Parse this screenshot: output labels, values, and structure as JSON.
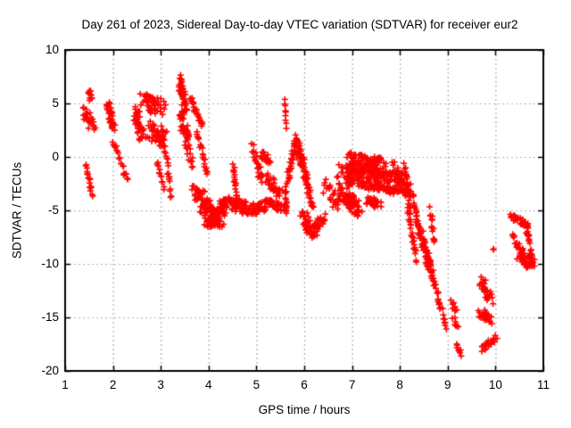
{
  "figure": {
    "background": "#ffffff",
    "text_color": "#000000"
  },
  "chart_data": {
    "type": "scatter",
    "title": "Day 261 of 2023, Sidereal Day-to-day VTEC variation (SDTVAR) for receiver eur2",
    "xlabel": "GPS time / hours",
    "ylabel": "SDTVAR / TECUs",
    "xlim": [
      1,
      11
    ],
    "ylim": [
      -20,
      10
    ],
    "xticks": [
      1,
      2,
      3,
      4,
      5,
      6,
      7,
      8,
      9,
      10,
      11
    ],
    "yticks": [
      10,
      5,
      0,
      -5,
      -10,
      -15,
      -20
    ],
    "grid": true,
    "grid_style": "dotted",
    "grid_color": "#b0b0b0",
    "axis_color": "#000000",
    "legend": "none",
    "marker": {
      "shape": "plus",
      "color": "#ff0000",
      "size": 7,
      "stroke": 1.6
    },
    "seed": 42,
    "stroke_format": "[x_start, y_start, x_end, y_end, n_points, x_jitter, y_jitter] - dense scatter segments read from the plot",
    "strokes": [
      [
        1.5,
        6.2,
        1.55,
        5.3,
        10,
        0.04,
        0.25
      ],
      [
        1.4,
        4.5,
        1.58,
        2.9,
        26,
        0.07,
        0.55
      ],
      [
        1.44,
        -0.9,
        1.56,
        -3.5,
        16,
        0.02,
        0.25
      ],
      [
        1.9,
        4.9,
        2.02,
        2.7,
        30,
        0.06,
        0.5
      ],
      [
        2.0,
        1.6,
        2.3,
        -2.3,
        20,
        0.02,
        0.3
      ],
      [
        2.47,
        4.3,
        2.62,
        1.8,
        40,
        0.06,
        0.6
      ],
      [
        2.62,
        5.2,
        3.02,
        4.7,
        55,
        0.11,
        0.8
      ],
      [
        2.75,
        2.6,
        3.08,
        1.6,
        45,
        0.1,
        0.9
      ],
      [
        3.02,
        2.8,
        3.22,
        -3.6,
        26,
        0.02,
        0.35
      ],
      [
        2.92,
        -0.6,
        3.06,
        -2.8,
        12,
        0.02,
        0.3
      ],
      [
        3.4,
        7.3,
        3.5,
        4.5,
        40,
        0.05,
        0.6
      ],
      [
        3.42,
        4.0,
        3.58,
        1.2,
        40,
        0.06,
        0.8
      ],
      [
        3.62,
        5.5,
        3.88,
        2.8,
        24,
        0.02,
        0.3
      ],
      [
        3.76,
        2.4,
        3.98,
        -1.8,
        20,
        0.02,
        0.3
      ],
      [
        3.55,
        0.8,
        3.66,
        -0.8,
        10,
        0.03,
        0.4
      ],
      [
        3.74,
        -3.3,
        4.1,
        -5.8,
        80,
        0.1,
        0.9
      ],
      [
        4.1,
        -5.6,
        4.38,
        -4.4,
        60,
        0.08,
        0.8
      ],
      [
        3.95,
        -6.2,
        4.25,
        -6.3,
        25,
        0.1,
        0.3
      ],
      [
        4.52,
        -0.7,
        4.6,
        -4.6,
        22,
        0.02,
        0.3
      ],
      [
        4.42,
        -4.3,
        4.95,
        -4.9,
        55,
        0.12,
        0.6
      ],
      [
        4.92,
        0.9,
        5.12,
        -2.4,
        26,
        0.04,
        0.5
      ],
      [
        5.08,
        0.3,
        5.28,
        -0.4,
        18,
        0.05,
        0.3
      ],
      [
        5.22,
        -2.0,
        5.48,
        -3.3,
        30,
        0.06,
        0.5
      ],
      [
        4.98,
        -5.2,
        5.32,
        -4.1,
        40,
        0.08,
        0.4
      ],
      [
        5.32,
        -4.3,
        5.58,
        -4.9,
        25,
        0.06,
        0.35
      ],
      [
        5.6,
        -2.9,
        5.64,
        -5.1,
        14,
        0.02,
        0.25
      ],
      [
        5.59,
        5.4,
        5.63,
        2.8,
        9,
        0.01,
        0.15
      ],
      [
        5.64,
        -2.4,
        5.82,
        1.6,
        30,
        0.03,
        0.4
      ],
      [
        5.82,
        1.5,
        6.1,
        -2.6,
        60,
        0.03,
        0.8
      ],
      [
        5.97,
        -5.6,
        6.2,
        -7.3,
        45,
        0.07,
        0.7
      ],
      [
        6.2,
        -6.8,
        6.42,
        -5.8,
        25,
        0.06,
        0.5
      ],
      [
        6.08,
        -3.2,
        6.18,
        -4.8,
        12,
        0.02,
        0.3
      ],
      [
        6.4,
        -2.6,
        6.72,
        -4.4,
        22,
        0.08,
        0.8
      ],
      [
        6.78,
        -3.4,
        7.12,
        -5.0,
        80,
        0.09,
        0.75
      ],
      [
        6.8,
        -1.6,
        8.08,
        -2.6,
        230,
        0.12,
        1.0
      ],
      [
        6.95,
        -0.3,
        7.62,
        -0.9,
        110,
        0.1,
        0.8
      ],
      [
        7.32,
        -4.0,
        7.56,
        -4.5,
        35,
        0.07,
        0.5
      ],
      [
        7.85,
        -1.0,
        8.12,
        -3.2,
        40,
        0.05,
        0.8
      ],
      [
        8.1,
        -0.9,
        8.24,
        -4.6,
        22,
        0.02,
        0.4
      ],
      [
        8.16,
        -4.6,
        8.34,
        -9.6,
        26,
        0.02,
        0.5
      ],
      [
        8.24,
        -3.0,
        8.48,
        -8.2,
        24,
        0.03,
        0.5
      ],
      [
        8.34,
        -5.6,
        8.62,
        -10.7,
        28,
        0.03,
        0.6
      ],
      [
        8.48,
        -7.6,
        8.7,
        -11.3,
        26,
        0.04,
        0.7
      ],
      [
        8.58,
        -9.2,
        8.82,
        -13.7,
        20,
        0.02,
        0.4
      ],
      [
        8.64,
        -4.9,
        8.72,
        -8.1,
        14,
        0.02,
        0.35
      ],
      [
        8.8,
        -12.9,
        8.97,
        -16.3,
        14,
        0.02,
        0.4
      ],
      [
        9.08,
        -13.5,
        9.18,
        -14.4,
        9,
        0.03,
        0.3
      ],
      [
        9.12,
        -15.1,
        9.22,
        -15.8,
        7,
        0.03,
        0.25
      ],
      [
        9.16,
        -17.6,
        9.28,
        -18.4,
        8,
        0.03,
        0.3
      ],
      [
        9.7,
        -11.6,
        9.9,
        -13.4,
        32,
        0.05,
        0.6
      ],
      [
        9.68,
        -14.4,
        9.9,
        -15.5,
        26,
        0.05,
        0.5
      ],
      [
        9.72,
        -18.0,
        10.0,
        -16.9,
        20,
        0.04,
        0.3
      ],
      [
        9.95,
        -8.7,
        9.96,
        -8.7,
        2,
        0.01,
        0.1
      ],
      [
        10.33,
        -5.6,
        10.63,
        -6.3,
        26,
        0.04,
        0.3
      ],
      [
        10.6,
        -6.1,
        10.7,
        -7.5,
        10,
        0.02,
        0.3
      ],
      [
        10.37,
        -7.4,
        10.66,
        -10.5,
        26,
        0.02,
        0.4
      ],
      [
        10.66,
        -6.3,
        10.78,
        -10.3,
        22,
        0.03,
        0.4
      ],
      [
        10.5,
        -9.0,
        10.78,
        -9.8,
        40,
        0.08,
        0.7
      ]
    ]
  }
}
